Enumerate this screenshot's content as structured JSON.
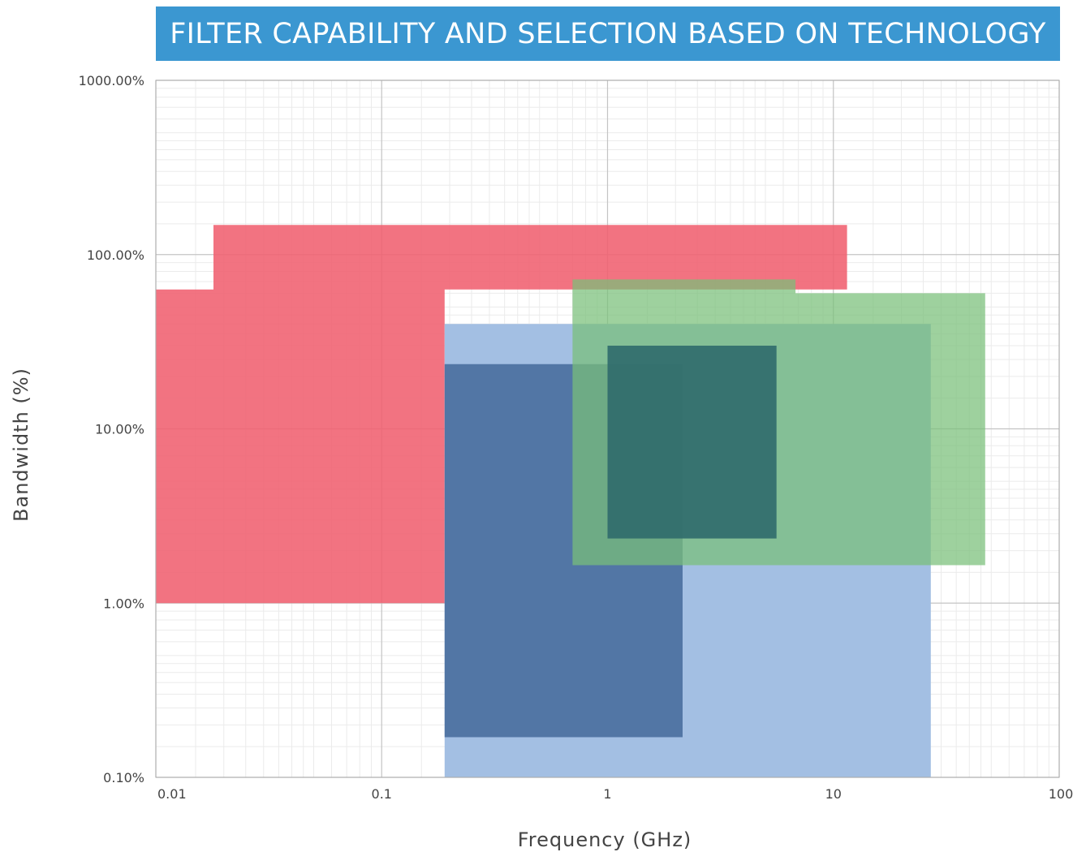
{
  "chart_data": {
    "type": "area",
    "title": "FILTER CAPABILITY AND SELECTION BASED ON TECHNOLOGY",
    "xlabel": "Frequency (GHz)",
    "ylabel": "Bandwidth (%)",
    "x_scale": "log",
    "y_scale": "log",
    "xlim": [
      0.01,
      100
    ],
    "ylim": [
      0.1,
      1000
    ],
    "grid": true,
    "x_ticks": [
      {
        "value": 0.01,
        "label": "0.01"
      },
      {
        "value": 0.1,
        "label": "0.1"
      },
      {
        "value": 1,
        "label": "1"
      },
      {
        "value": 10,
        "label": "10"
      },
      {
        "value": 100,
        "label": "100"
      }
    ],
    "y_ticks": [
      {
        "value": 0.1,
        "label": "0.10%"
      },
      {
        "value": 1,
        "label": "1.00%"
      },
      {
        "value": 10,
        "label": "10.00%"
      },
      {
        "value": 100,
        "label": "100.00%"
      },
      {
        "value": 1000,
        "label": "1000.00%"
      }
    ],
    "series": [
      {
        "color": "#f0606f",
        "opacity": 0.88,
        "points": [
          [
            0.01,
            1
          ],
          [
            0.01,
            63
          ],
          [
            0.018,
            63
          ],
          [
            0.018,
            148
          ],
          [
            11.5,
            148
          ],
          [
            11.5,
            63
          ],
          [
            0.19,
            63
          ],
          [
            0.19,
            1
          ]
        ]
      },
      {
        "color": "#a3bfe3",
        "opacity": 1.0,
        "points": [
          [
            0.19,
            0.1
          ],
          [
            0.19,
            40
          ],
          [
            27,
            40
          ],
          [
            27,
            0.1
          ]
        ]
      },
      {
        "color": "#4b70a0",
        "opacity": 0.92,
        "points": [
          [
            0.19,
            0.17
          ],
          [
            0.19,
            23.5
          ],
          [
            1.0,
            23.5
          ],
          [
            1.0,
            23.5
          ],
          [
            2.15,
            23.5
          ],
          [
            2.15,
            0.17
          ]
        ]
      },
      {
        "color": "#78bf79",
        "opacity": 0.72,
        "points": [
          [
            0.7,
            1.65
          ],
          [
            0.7,
            72
          ],
          [
            6.8,
            72
          ],
          [
            6.8,
            60
          ],
          [
            47,
            60
          ],
          [
            47,
            1.65
          ]
        ]
      },
      {
        "color": "#2f6a6b",
        "opacity": 0.9,
        "points": [
          [
            1.0,
            2.35
          ],
          [
            1.0,
            30
          ],
          [
            5.6,
            30
          ],
          [
            5.6,
            2.35
          ]
        ]
      }
    ]
  }
}
